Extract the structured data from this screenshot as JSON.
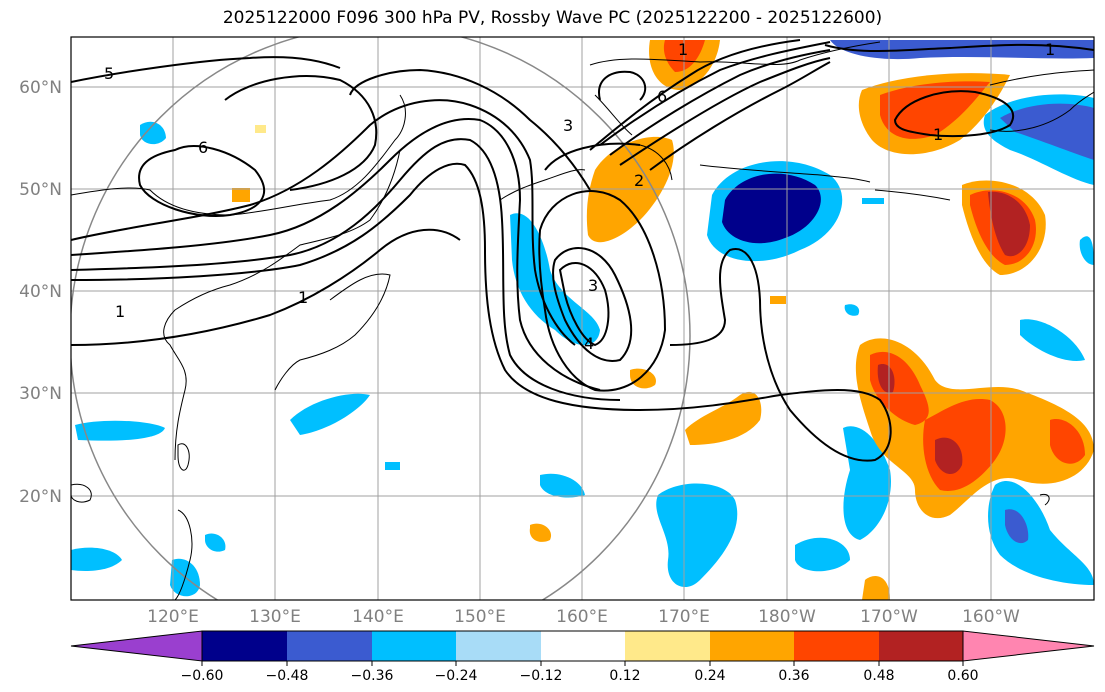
{
  "title": "2025122000 F096 300 hPa PV, Rossby Wave PC (2025122200 - 2025122600)",
  "map": {
    "lat_labels": [
      "60°N",
      "50°N",
      "40°N",
      "30°N",
      "20°N"
    ],
    "lon_labels": [
      "120°E",
      "130°E",
      "140°E",
      "150°E",
      "160°E",
      "170°E",
      "180°W",
      "170°W",
      "160°W"
    ],
    "contour_labels": [
      "5",
      "6",
      "1",
      "1",
      "6",
      "1",
      "2",
      "3",
      "4",
      "3",
      "1",
      "1"
    ]
  },
  "colorbar": {
    "colors": [
      "#9a3fcf",
      "#00008b",
      "#3b5bd0",
      "#00bfff",
      "#a8dcf7",
      "#ffffff",
      "#ffe98a",
      "#ffa500",
      "#ff4500",
      "#b22222",
      "#ff85b0"
    ],
    "ticks": [
      "−0.60",
      "−0.48",
      "−0.36",
      "−0.24",
      "−0.12",
      "0.12",
      "0.24",
      "0.36",
      "0.48",
      "0.60"
    ]
  }
}
